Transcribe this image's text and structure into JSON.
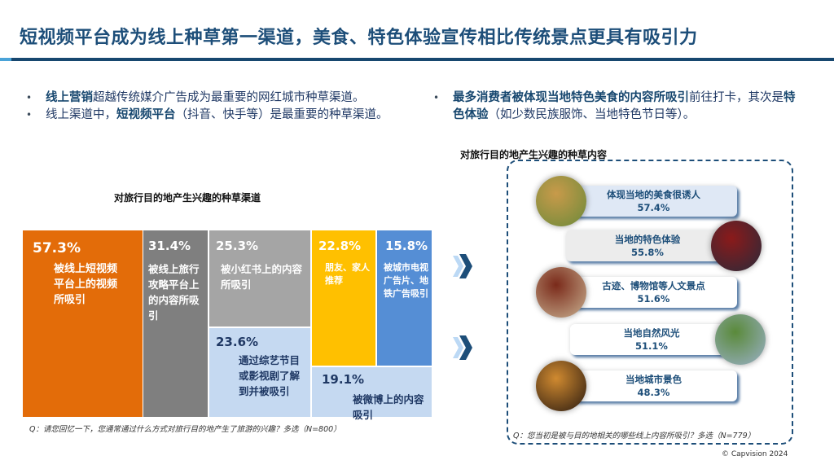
{
  "header": {
    "title": "短视频平台成为线上种草第一渠道，美食、特色体验宣传相比传统景点更具有吸引力"
  },
  "left_bullets": [
    {
      "bold": "线上营销",
      "text": "超越传统媒介广告成为最重要的网红城市种草渠道。"
    },
    {
      "pre": "线上渠道中，",
      "bold": "短视频平台",
      "text": "（抖音、快手等）是最重要的种草渠道。"
    }
  ],
  "right_bullet": {
    "bold": "最多消费者被体现当地特色美食的内容所吸引",
    "text": "前往打卡，其次是",
    "bold2": "特色体验",
    "text2": "（如少数民族服饰、当地特色节日等）。"
  },
  "left_chart": {
    "title": "对旅行目的地产生兴趣的种草渠道",
    "cells": [
      {
        "pct": "57.3%",
        "label": "被线上短视频平台上的视频所吸引",
        "color": "#e36c09"
      },
      {
        "pct": "31.4%",
        "label": "被线上旅行攻略平台上的内容所吸引",
        "color": "#7f7f7f"
      },
      {
        "pct": "25.3%",
        "label": "被小红书上的内容所吸引",
        "color": "#a5a5a5"
      },
      {
        "pct": "23.6%",
        "label": "通过综艺节目或影视剧了解到并被吸引",
        "color": "#c5d9f1"
      },
      {
        "pct": "22.8%",
        "label": "朋友、家人推荐",
        "color": "#ffc000"
      },
      {
        "pct": "15.8%",
        "label": "被城市电视广告片、地铁广告吸引",
        "color": "#558ed5"
      },
      {
        "pct": "19.1%",
        "label": "被微博上的内容吸引",
        "color": "#c5d9f1"
      }
    ],
    "question": "Q：请您回忆一下，您通常通过什么方式对旅行目的地产生了旅游的兴趣？多选（N=800）"
  },
  "right_chart": {
    "title": "对旅行目的地产生兴趣的种草内容",
    "items": [
      {
        "label": "体现当地的美食很诱人",
        "pct": "57.4%",
        "photo": "food-photo"
      },
      {
        "label": "当地的特色体验",
        "pct": "55.8%",
        "photo": "ethnic-costume-photo"
      },
      {
        "label": "古迹、博物馆等人文景点",
        "pct": "51.6%",
        "photo": "historic-gate-photo"
      },
      {
        "label": "当地自然风光",
        "pct": "51.1%",
        "photo": "mountain-photo"
      },
      {
        "label": "当地城市景色",
        "pct": "48.3%",
        "photo": "city-night-photo"
      }
    ],
    "question": "Q：您当初是被与目的地相关的哪些线上内容所吸引？多选（N=779）"
  },
  "footer": {
    "copyright": "© Capvision 2024"
  }
}
